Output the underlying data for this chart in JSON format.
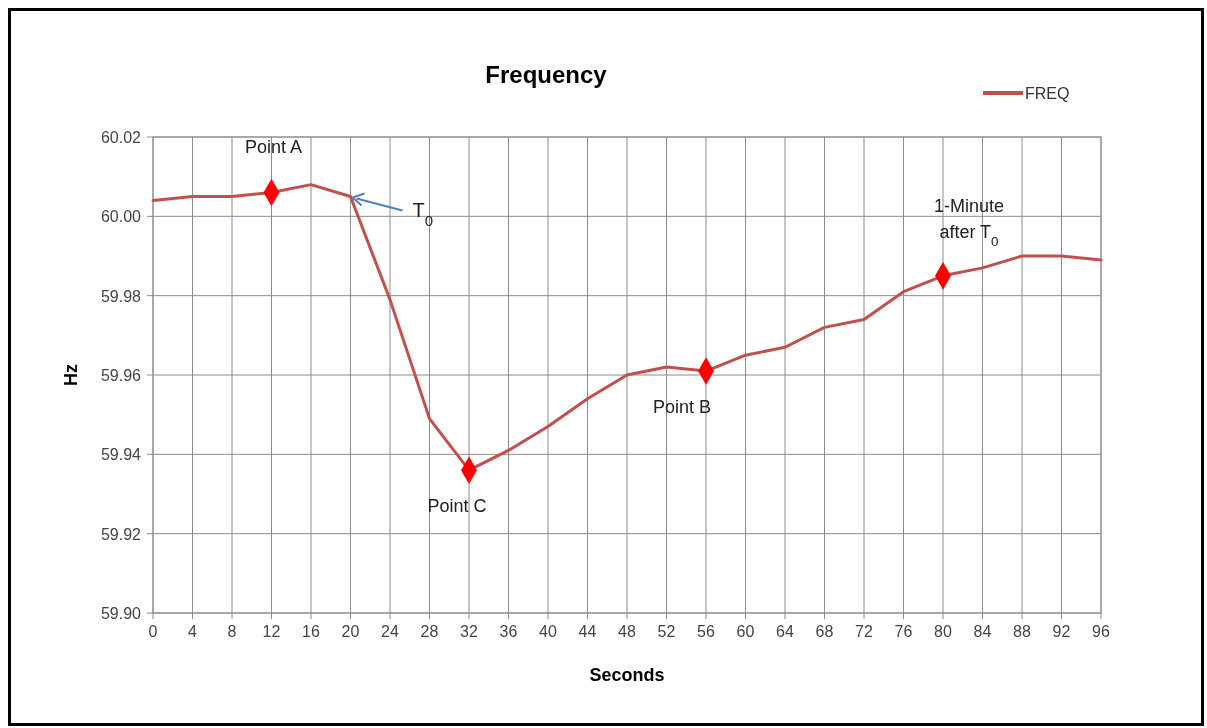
{
  "chart_data": {
    "type": "line",
    "title": "Frequency",
    "xlabel": "Seconds",
    "ylabel": "Hz",
    "x": [
      0,
      4,
      8,
      12,
      16,
      20,
      24,
      28,
      32,
      36,
      40,
      44,
      48,
      52,
      56,
      60,
      64,
      68,
      72,
      76,
      80,
      84,
      88,
      92,
      96
    ],
    "series": [
      {
        "name": "FREQ",
        "color": "#c0504d",
        "marker": "none",
        "values": [
          60.004,
          60.005,
          60.005,
          60.006,
          60.008,
          60.005,
          59.979,
          59.949,
          59.936,
          59.941,
          59.947,
          59.954,
          59.96,
          59.962,
          59.961,
          59.965,
          59.967,
          59.972,
          59.974,
          59.981,
          59.985,
          59.987,
          59.99,
          59.99,
          59.989
        ]
      },
      {
        "type": "scatter",
        "color": "#ff0000",
        "marker": "diamond",
        "x": [
          12,
          32,
          56,
          80
        ],
        "values": [
          60.006,
          59.936,
          59.961,
          59.985
        ]
      }
    ],
    "xlim": [
      0,
      96
    ],
    "xticks": [
      0,
      4,
      8,
      12,
      16,
      20,
      24,
      28,
      32,
      36,
      40,
      44,
      48,
      52,
      56,
      60,
      64,
      68,
      72,
      76,
      80,
      84,
      88,
      92,
      96
    ],
    "ylim": [
      59.9,
      60.02
    ],
    "yticks": [
      {
        "value": 59.9,
        "label": "59.90"
      },
      {
        "value": 59.92,
        "label": "59.92"
      },
      {
        "value": 59.94,
        "label": "59.94"
      },
      {
        "value": 59.96,
        "label": "59.96"
      },
      {
        "value": 59.98,
        "label": "59.98"
      },
      {
        "value": 60,
        "label": "60.00"
      },
      {
        "value": 60.02,
        "label": "60.02"
      }
    ],
    "grid": true,
    "legend": "top right",
    "annotations": [
      {
        "text": "Point A",
        "x": 12,
        "y": 60.006
      },
      {
        "text": "T$_{0}$",
        "x": 20,
        "y": 60.005
      },
      {
        "text": "Point C",
        "x": 32,
        "y": 59.936
      },
      {
        "text": "Point B",
        "x": 56,
        "y": 59.961
      },
      {
        "text": "1-Minute after T$_{0}$",
        "x": 80,
        "y": 59.985
      }
    ]
  }
}
